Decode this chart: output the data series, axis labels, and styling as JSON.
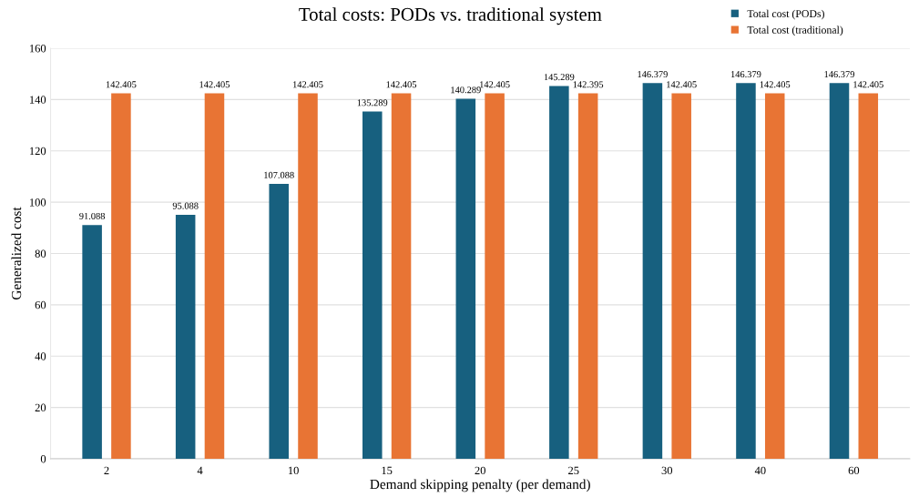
{
  "chart_data": {
    "type": "bar",
    "title": "Total costs: PODs vs. traditional system",
    "xlabel": "Demand skipping penalty (per demand)",
    "ylabel": "Generalized cost",
    "categories": [
      "2",
      "4",
      "10",
      "15",
      "20",
      "25",
      "30",
      "40",
      "60"
    ],
    "series": [
      {
        "name": "Total cost (PODs)",
        "color": "#17607f",
        "values": [
          91.088,
          95.088,
          107.088,
          135.289,
          140.289,
          145.289,
          146.379,
          146.379,
          146.379
        ]
      },
      {
        "name": "Total cost (traditional)",
        "color": "#e87434",
        "values": [
          142.405,
          142.405,
          142.405,
          142.405,
          142.405,
          142.395,
          142.405,
          142.405,
          142.405
        ]
      }
    ],
    "ylim": [
      0,
      160
    ],
    "yticks": [
      0,
      20,
      40,
      60,
      80,
      100,
      120,
      140,
      160
    ],
    "grid": "y",
    "legend": "top right",
    "data_labels": true
  }
}
